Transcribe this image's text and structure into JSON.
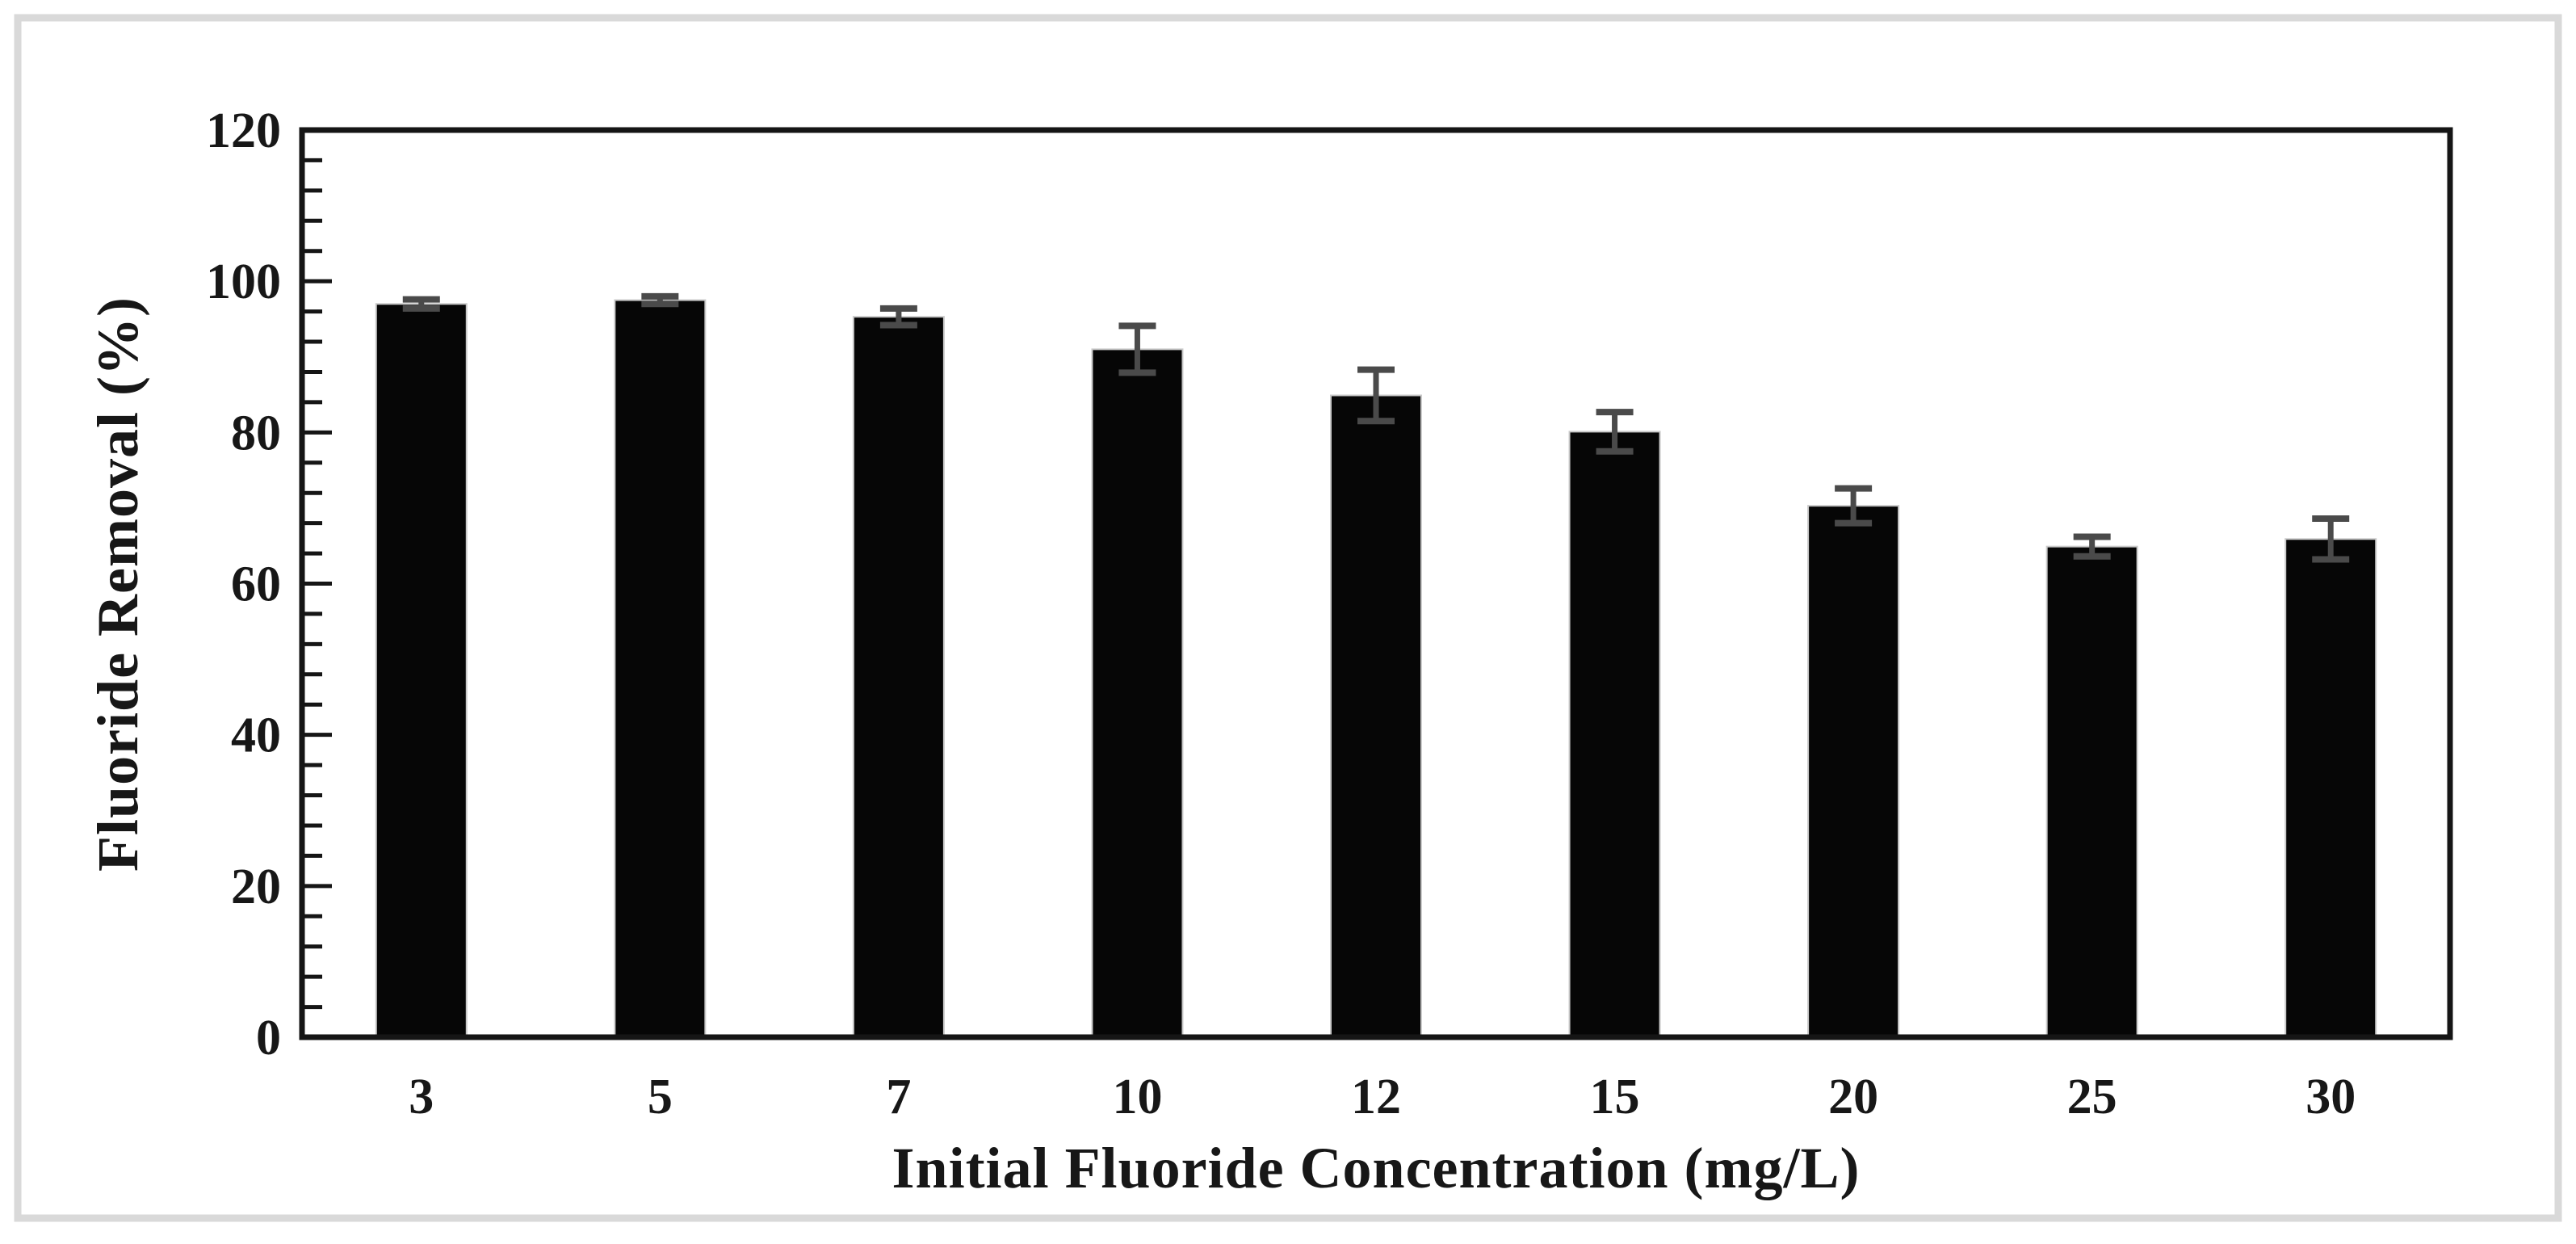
{
  "chart_data": {
    "type": "bar",
    "title": "",
    "xlabel": "Initial Fluoride Concentration (mg/L)",
    "ylabel": "Fluoride Removal (%)",
    "categories": [
      "3",
      "5",
      "7",
      "10",
      "12",
      "15",
      "20",
      "25",
      "30"
    ],
    "values": [
      97,
      97.5,
      95.3,
      91,
      84.9,
      80.1,
      70.3,
      64.9,
      65.9
    ],
    "error_bars": [
      0.6,
      0.5,
      1.1,
      3.1,
      3.4,
      2.6,
      2.3,
      1.3,
      2.7
    ],
    "ylim": [
      0,
      120
    ],
    "y_tick_step_major": 20,
    "y_tick_step_minor": 4,
    "y_tick_labels": [
      "0",
      "20",
      "40",
      "60",
      "80",
      "100",
      "120"
    ],
    "grid": "off",
    "legend_position": "none",
    "colors": {
      "bar_fill": "#060606",
      "bar_edge": "#c9c9c9",
      "error_bar": "#4a4a4a",
      "axis": "#151515",
      "text": "#171717",
      "figure_frame": "#d9d9d9",
      "background": "#ffffff"
    }
  }
}
